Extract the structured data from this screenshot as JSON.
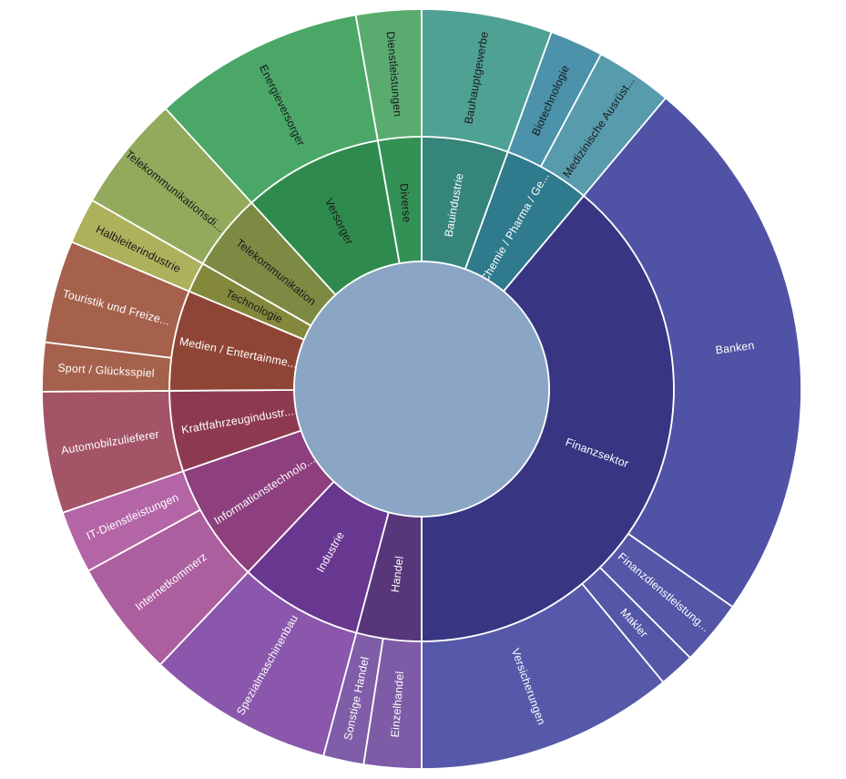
{
  "chart_data": {
    "type": "sunburst",
    "title": "",
    "angle_unit": "degrees clockwise from 12 o'clock",
    "rings": 2,
    "hole_color": "#8ba5c4",
    "background_color": "#ffffff",
    "separator_color": "#ffffff",
    "label_color_dark": "#1a1a1a",
    "label_color_light": "#ffffff",
    "sectors": [
      {
        "id": "bauindustrie",
        "label": "Bauindustrie",
        "start": 0,
        "end": 20,
        "share_pct": 5.6,
        "color": "#35857a",
        "label_color": "#ffffff",
        "children": [
          {
            "id": "bauhauptgewerbe",
            "label": "Bauhauptgewerbe",
            "start": 0,
            "end": 20,
            "share_pct": 5.6,
            "color": "#4fa194",
            "label_color": "#1a1a1a"
          }
        ]
      },
      {
        "id": "chemie-pharma",
        "label": "Chemie / Pharma / Ge...",
        "start": 20,
        "end": 40,
        "share_pct": 5.6,
        "color": "#2f7a8c",
        "label_color": "#ffffff",
        "children": [
          {
            "id": "biotechnologie",
            "label": "Biotechnologie",
            "start": 20,
            "end": 28.2,
            "share_pct": 2.3,
            "color": "#4b92aa",
            "label_color": "#1a1a1a"
          },
          {
            "id": "medizinische-ausruestung",
            "label": "Medizinische Ausrüst...",
            "start": 28.2,
            "end": 40,
            "share_pct": 3.3,
            "color": "#579bad",
            "label_color": "#1a1a1a"
          }
        ]
      },
      {
        "id": "finanzsektor",
        "label": "Finanzsektor",
        "start": 40,
        "end": 180,
        "share_pct": 38.9,
        "color": "#383683",
        "label_color": "#ffffff",
        "children": [
          {
            "id": "banken",
            "label": "Banken",
            "start": 40,
            "end": 125,
            "share_pct": 23.6,
            "color": "#5052a5",
            "label_color": "#ffffff"
          },
          {
            "id": "finanzdienstleistung",
            "label": "Finanzdienstleistung...",
            "start": 125,
            "end": 135,
            "share_pct": 2.8,
            "color": "#5456a7",
            "label_color": "#ffffff"
          },
          {
            "id": "makler",
            "label": "Makler",
            "start": 135,
            "end": 140.5,
            "share_pct": 1.5,
            "color": "#5456a7",
            "label_color": "#ffffff"
          },
          {
            "id": "versicherungen",
            "label": "Versicherungen",
            "start": 140.5,
            "end": 180,
            "share_pct": 11.0,
            "color": "#5658a9",
            "label_color": "#ffffff"
          }
        ]
      },
      {
        "id": "handel",
        "label": "Handel",
        "start": 180,
        "end": 195,
        "share_pct": 4.2,
        "color": "#573779",
        "label_color": "#ffffff",
        "children": [
          {
            "id": "einzelhandel",
            "label": "Einzelhandel",
            "start": 180,
            "end": 188.8,
            "share_pct": 2.4,
            "color": "#7d5ba6",
            "label_color": "#ffffff"
          },
          {
            "id": "sonstige-handel",
            "label": "Sonstige Handel",
            "start": 188.8,
            "end": 195,
            "share_pct": 1.7,
            "color": "#7f5da8",
            "label_color": "#ffffff"
          }
        ]
      },
      {
        "id": "industrie",
        "label": "Industrie",
        "start": 195,
        "end": 223.5,
        "share_pct": 7.9,
        "color": "#683790",
        "label_color": "#ffffff",
        "children": [
          {
            "id": "spezialmaschinenbau",
            "label": "Spezialmaschinenbau",
            "start": 195,
            "end": 223.5,
            "share_pct": 7.9,
            "color": "#8a57ac",
            "label_color": "#ffffff"
          }
        ]
      },
      {
        "id": "informationstechnologie",
        "label": "Informationstechnolo...",
        "start": 223.5,
        "end": 251,
        "share_pct": 7.6,
        "color": "#8d3f7e",
        "label_color": "#ffffff",
        "children": [
          {
            "id": "internetkommerz",
            "label": "Internetkommerz",
            "start": 223.5,
            "end": 241.4,
            "share_pct": 5.0,
            "color": "#ac5f9e",
            "label_color": "#ffffff"
          },
          {
            "id": "it-dienstleistungen",
            "label": "IT-Dienstleistungen",
            "start": 241.4,
            "end": 251,
            "share_pct": 2.7,
            "color": "#b465a6",
            "label_color": "#ffffff"
          }
        ]
      },
      {
        "id": "kraftfahrzeugindustrie",
        "label": "Kraftfahrzeugindustr...",
        "start": 251,
        "end": 269.6,
        "share_pct": 5.2,
        "color": "#8d3a51",
        "label_color": "#ffffff",
        "children": [
          {
            "id": "automobilzulieferer",
            "label": "Automobilzulieferer",
            "start": 251,
            "end": 269.6,
            "share_pct": 5.2,
            "color": "#a35466",
            "label_color": "#ffffff"
          }
        ]
      },
      {
        "id": "medien-entertainment",
        "label": "Medien / Entertainme...",
        "start": 269.6,
        "end": 292.8,
        "share_pct": 6.4,
        "color": "#8f4536",
        "label_color": "#ffffff",
        "children": [
          {
            "id": "sport-gluecksspiel",
            "label": "Sport / Glücksspiel",
            "start": 269.6,
            "end": 277.1,
            "share_pct": 2.1,
            "color": "#a5614c",
            "label_color": "#ffffff"
          },
          {
            "id": "touristik-freizeit",
            "label": "Touristik und Freize...",
            "start": 277.1,
            "end": 292.8,
            "share_pct": 4.4,
            "color": "#a5614c",
            "label_color": "#ffffff"
          }
        ]
      },
      {
        "id": "technologie",
        "label": "Technologie",
        "start": 292.8,
        "end": 299.8,
        "share_pct": 1.9,
        "color": "#84883c",
        "label_color": "#1a1a1a",
        "children": [
          {
            "id": "halbleiterindustrie",
            "label": "Halbleiterindustrie",
            "start": 292.8,
            "end": 299.8,
            "share_pct": 1.9,
            "color": "#adb15b",
            "label_color": "#1a1a1a"
          }
        ]
      },
      {
        "id": "telekommunikation",
        "label": "Telekommunikation",
        "start": 299.8,
        "end": 317.6,
        "share_pct": 4.9,
        "color": "#7c8a44",
        "label_color": "#1a1a1a",
        "children": [
          {
            "id": "telekommunikationsdienste",
            "label": "Telekommunikationsdi...",
            "start": 299.8,
            "end": 317.6,
            "share_pct": 4.9,
            "color": "#93a95c",
            "label_color": "#1a1a1a"
          }
        ]
      },
      {
        "id": "versorger",
        "label": "Versorger",
        "start": 317.6,
        "end": 350,
        "share_pct": 9.0,
        "color": "#2f8b4d",
        "label_color": "#1a1a1a",
        "children": [
          {
            "id": "energieversorger",
            "label": "Energieversorger",
            "start": 317.6,
            "end": 350,
            "share_pct": 9.0,
            "color": "#4aa768",
            "label_color": "#1a1a1a"
          }
        ]
      },
      {
        "id": "diverse",
        "label": "Diverse",
        "start": 350,
        "end": 360,
        "share_pct": 2.8,
        "color": "#349155",
        "label_color": "#1a1a1a",
        "children": [
          {
            "id": "dienstleistungen",
            "label": "Dienstleistungen",
            "start": 350,
            "end": 360,
            "share_pct": 2.8,
            "color": "#5aab70",
            "label_color": "#1a1a1a"
          }
        ]
      }
    ]
  }
}
